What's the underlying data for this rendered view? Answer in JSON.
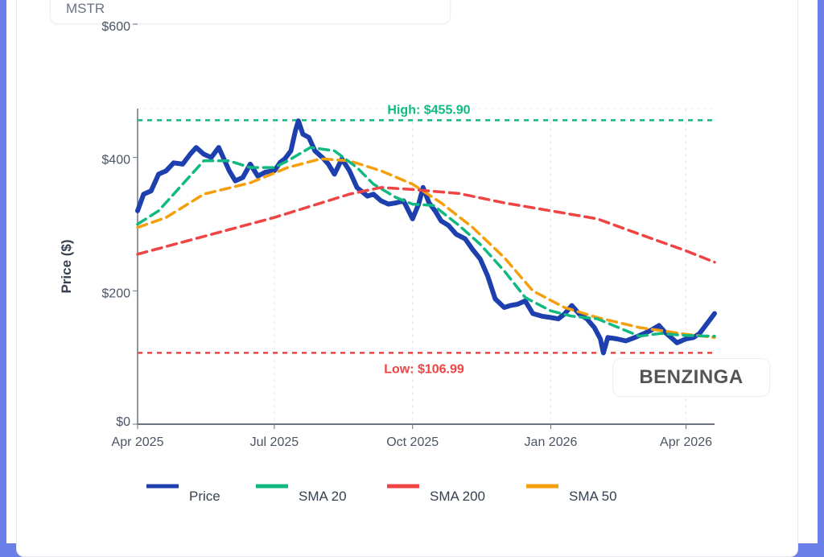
{
  "header": {
    "ticker": "MSTR"
  },
  "watermark": "BENZINGA",
  "chart_data": {
    "type": "line",
    "title": "",
    "xlabel": "",
    "ylabel": "Price ($)",
    "ylim": [
      0,
      600
    ],
    "xlim": [
      "2025-04-01",
      "2026-04-20"
    ],
    "y_ticks": [
      {
        "v": 0,
        "label": "$0"
      },
      {
        "v": 200,
        "label": "$200"
      },
      {
        "v": 400,
        "label": "$400"
      },
      {
        "v": 600,
        "label": "$600"
      }
    ],
    "x_ticks": [
      {
        "d": "2025-04-01",
        "label": "Apr 2025"
      },
      {
        "d": "2025-07-01",
        "label": "Jul 2025"
      },
      {
        "d": "2025-10-01",
        "label": "Oct 2025"
      },
      {
        "d": "2026-01-01",
        "label": "Jan 2026"
      },
      {
        "d": "2026-04-01",
        "label": "Apr 2026"
      }
    ],
    "grid": "vertical dashed",
    "legend_position": "bottom",
    "annotations": [
      {
        "name": "high",
        "value": 455.9,
        "label": "High: $455.90",
        "color": "#10b981"
      },
      {
        "name": "low",
        "value": 106.99,
        "label": "Low: $106.99",
        "color": "#ef4444"
      }
    ],
    "series": [
      {
        "name": "Price",
        "color": "#1e40af",
        "dash": false,
        "points": [
          [
            "2025-04-01",
            320
          ],
          [
            "2025-04-05",
            345
          ],
          [
            "2025-04-10",
            350
          ],
          [
            "2025-04-15",
            375
          ],
          [
            "2025-04-20",
            380
          ],
          [
            "2025-04-25",
            392
          ],
          [
            "2025-05-01",
            390
          ],
          [
            "2025-05-06",
            405
          ],
          [
            "2025-05-10",
            415
          ],
          [
            "2025-05-15",
            405
          ],
          [
            "2025-05-20",
            400
          ],
          [
            "2025-05-25",
            415
          ],
          [
            "2025-06-01",
            380
          ],
          [
            "2025-06-05",
            365
          ],
          [
            "2025-06-10",
            370
          ],
          [
            "2025-06-15",
            390
          ],
          [
            "2025-06-20",
            372
          ],
          [
            "2025-06-25",
            378
          ],
          [
            "2025-07-01",
            380
          ],
          [
            "2025-07-05",
            393
          ],
          [
            "2025-07-08",
            398
          ],
          [
            "2025-07-12",
            410
          ],
          [
            "2025-07-15",
            440
          ],
          [
            "2025-07-17",
            455
          ],
          [
            "2025-07-20",
            435
          ],
          [
            "2025-07-24",
            430
          ],
          [
            "2025-07-28",
            410
          ],
          [
            "2025-08-02",
            400
          ],
          [
            "2025-08-06",
            390
          ],
          [
            "2025-08-10",
            375
          ],
          [
            "2025-08-15",
            398
          ],
          [
            "2025-08-20",
            380
          ],
          [
            "2025-08-25",
            355
          ],
          [
            "2025-09-01",
            342
          ],
          [
            "2025-09-05",
            345
          ],
          [
            "2025-09-10",
            335
          ],
          [
            "2025-09-15",
            330
          ],
          [
            "2025-09-20",
            332
          ],
          [
            "2025-09-25",
            335
          ],
          [
            "2025-10-01",
            308
          ],
          [
            "2025-10-05",
            330
          ],
          [
            "2025-10-08",
            355
          ],
          [
            "2025-10-12",
            332
          ],
          [
            "2025-10-16",
            320
          ],
          [
            "2025-10-20",
            305
          ],
          [
            "2025-10-25",
            298
          ],
          [
            "2025-10-30",
            285
          ],
          [
            "2025-11-05",
            278
          ],
          [
            "2025-11-10",
            262
          ],
          [
            "2025-11-15",
            248
          ],
          [
            "2025-11-20",
            222
          ],
          [
            "2025-11-25",
            188
          ],
          [
            "2025-12-01",
            175
          ],
          [
            "2025-12-05",
            178
          ],
          [
            "2025-12-10",
            180
          ],
          [
            "2025-12-15",
            185
          ],
          [
            "2025-12-20",
            166
          ],
          [
            "2025-12-26",
            162
          ],
          [
            "2026-01-01",
            160
          ],
          [
            "2026-01-06",
            158
          ],
          [
            "2026-01-10",
            165
          ],
          [
            "2026-01-15",
            178
          ],
          [
            "2026-01-20",
            165
          ],
          [
            "2026-01-25",
            158
          ],
          [
            "2026-01-30",
            145
          ],
          [
            "2026-02-03",
            128
          ],
          [
            "2026-02-05",
            107
          ],
          [
            "2026-02-08",
            130
          ],
          [
            "2026-02-14",
            128
          ],
          [
            "2026-02-20",
            125
          ],
          [
            "2026-02-26",
            130
          ],
          [
            "2026-03-03",
            135
          ],
          [
            "2026-03-08",
            140
          ],
          [
            "2026-03-14",
            148
          ],
          [
            "2026-03-18",
            138
          ],
          [
            "2026-03-22",
            130
          ],
          [
            "2026-03-26",
            122
          ],
          [
            "2026-04-01",
            128
          ],
          [
            "2026-04-06",
            130
          ],
          [
            "2026-04-10",
            136
          ],
          [
            "2026-04-14",
            148
          ],
          [
            "2026-04-20",
            166
          ]
        ]
      },
      {
        "name": "SMA 20",
        "color": "#10b981",
        "dash": true,
        "points": [
          [
            "2025-04-01",
            300
          ],
          [
            "2025-04-15",
            320
          ],
          [
            "2025-05-01",
            360
          ],
          [
            "2025-05-15",
            395
          ],
          [
            "2025-06-01",
            395
          ],
          [
            "2025-06-15",
            385
          ],
          [
            "2025-07-01",
            385
          ],
          [
            "2025-07-10",
            395
          ],
          [
            "2025-07-25",
            415
          ],
          [
            "2025-08-10",
            410
          ],
          [
            "2025-08-25",
            385
          ],
          [
            "2025-09-05",
            360
          ],
          [
            "2025-09-20",
            340
          ],
          [
            "2025-10-01",
            330
          ],
          [
            "2025-10-15",
            328
          ],
          [
            "2025-11-01",
            298
          ],
          [
            "2025-11-15",
            270
          ],
          [
            "2025-12-01",
            230
          ],
          [
            "2025-12-15",
            190
          ],
          [
            "2026-01-01",
            170
          ],
          [
            "2026-01-15",
            162
          ],
          [
            "2026-02-01",
            158
          ],
          [
            "2026-02-15",
            145
          ],
          [
            "2026-03-01",
            132
          ],
          [
            "2026-03-15",
            136
          ],
          [
            "2026-04-01",
            133
          ],
          [
            "2026-04-20",
            132
          ]
        ]
      },
      {
        "name": "SMA 200",
        "color": "#ef4444",
        "dash": true,
        "points": [
          [
            "2025-04-01",
            255
          ],
          [
            "2025-07-01",
            310
          ],
          [
            "2025-08-20",
            345
          ],
          [
            "2025-09-10",
            355
          ],
          [
            "2025-10-01",
            352
          ],
          [
            "2025-11-01",
            346
          ],
          [
            "2025-12-01",
            332
          ],
          [
            "2026-01-01",
            320
          ],
          [
            "2026-02-01",
            308
          ],
          [
            "2026-03-01",
            285
          ],
          [
            "2026-04-01",
            260
          ],
          [
            "2026-04-20",
            243
          ]
        ]
      },
      {
        "name": "SMA 50",
        "color": "#f59e0b",
        "dash": true,
        "points": [
          [
            "2025-04-01",
            295
          ],
          [
            "2025-04-20",
            310
          ],
          [
            "2025-05-15",
            345
          ],
          [
            "2025-06-15",
            362
          ],
          [
            "2025-07-10",
            385
          ],
          [
            "2025-08-01",
            398
          ],
          [
            "2025-08-20",
            395
          ],
          [
            "2025-09-10",
            380
          ],
          [
            "2025-10-01",
            360
          ],
          [
            "2025-10-20",
            332
          ],
          [
            "2025-11-10",
            295
          ],
          [
            "2025-12-01",
            250
          ],
          [
            "2025-12-20",
            200
          ],
          [
            "2026-01-10",
            175
          ],
          [
            "2026-02-01",
            160
          ],
          [
            "2026-03-01",
            145
          ],
          [
            "2026-04-01",
            135
          ],
          [
            "2026-04-20",
            130
          ]
        ]
      }
    ]
  }
}
